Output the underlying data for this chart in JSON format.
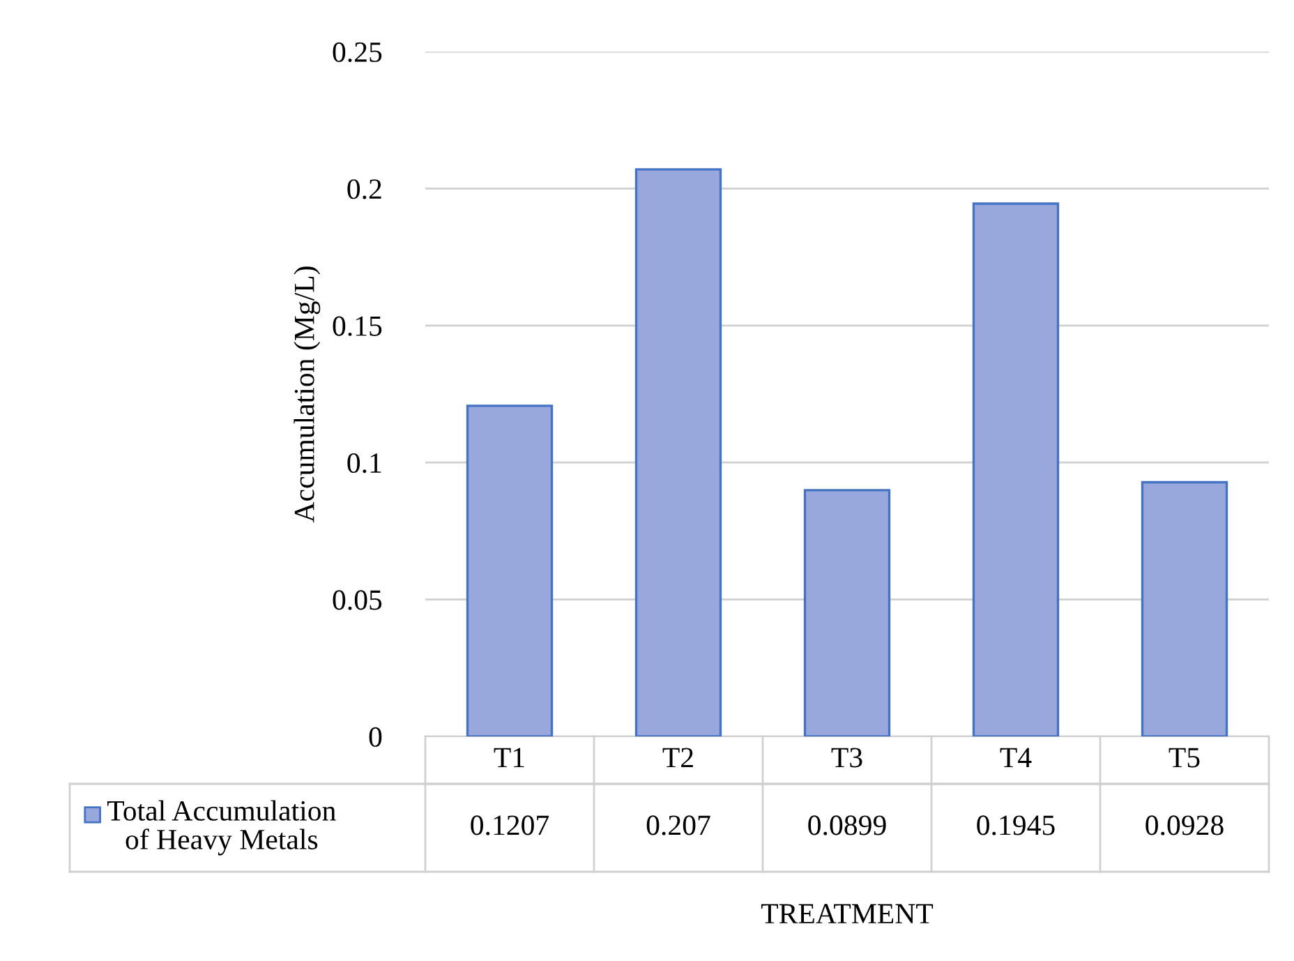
{
  "chart_data": {
    "type": "bar",
    "xlabel": "TREATMENT",
    "ylabel": "Accumulation (Mg/L)",
    "categories": [
      "T1",
      "T2",
      "T3",
      "T4",
      "T5"
    ],
    "series": [
      {
        "name": "Total Accumulation of Heavy Metals",
        "color": "#98a8dc",
        "values": [
          0.1207,
          0.207,
          0.0899,
          0.1945,
          0.0928
        ]
      }
    ],
    "ylim": [
      0,
      0.25
    ],
    "yticks": [
      0,
      0.05,
      0.1,
      0.15,
      0.2,
      0.25
    ],
    "grid": "y",
    "data_labels": true,
    "legend": "bottom left"
  }
}
